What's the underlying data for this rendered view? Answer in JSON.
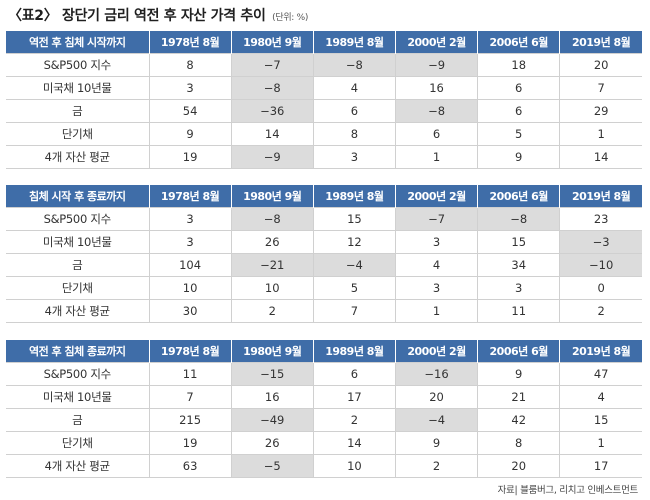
{
  "title": {
    "text": "〈표2〉 장단기 금리 역전 후 자산 가격 추이",
    "unit": "(단위: %)"
  },
  "columns": [
    "1978년 8월",
    "1980년 9월",
    "1989년 8월",
    "2000년 2월",
    "2006년 6월",
    "2019년 8월"
  ],
  "tables": [
    {
      "header": "역전 후 침체 시작까지",
      "rows": [
        {
          "label": "S&P500 지수",
          "values": [
            "8",
            "−7",
            "−8",
            "−9",
            "18",
            "20"
          ]
        },
        {
          "label": "미국채 10년물",
          "values": [
            "3",
            "−8",
            "4",
            "16",
            "6",
            "7"
          ]
        },
        {
          "label": "금",
          "values": [
            "54",
            "−36",
            "6",
            "−8",
            "6",
            "29"
          ]
        },
        {
          "label": "단기채",
          "values": [
            "9",
            "14",
            "8",
            "6",
            "5",
            "1"
          ]
        },
        {
          "label": "4개 자산 평균",
          "values": [
            "19",
            "−9",
            "3",
            "1",
            "9",
            "14"
          ]
        }
      ]
    },
    {
      "header": "침체 시작 후 종료까지",
      "rows": [
        {
          "label": "S&P500 지수",
          "values": [
            "3",
            "−8",
            "15",
            "−7",
            "−8",
            "23"
          ]
        },
        {
          "label": "미국채 10년물",
          "values": [
            "3",
            "26",
            "12",
            "3",
            "15",
            "−3"
          ]
        },
        {
          "label": "금",
          "values": [
            "104",
            "−21",
            "−4",
            "4",
            "34",
            "−10"
          ]
        },
        {
          "label": "단기채",
          "values": [
            "10",
            "10",
            "5",
            "3",
            "3",
            "0"
          ]
        },
        {
          "label": "4개 자산 평균",
          "values": [
            "30",
            "2",
            "7",
            "1",
            "11",
            "2"
          ]
        }
      ]
    },
    {
      "header": "역전 후 침체 종료까지",
      "rows": [
        {
          "label": "S&P500 지수",
          "values": [
            "11",
            "−15",
            "6",
            "−16",
            "9",
            "47"
          ]
        },
        {
          "label": "미국채 10년물",
          "values": [
            "7",
            "16",
            "17",
            "20",
            "21",
            "4"
          ]
        },
        {
          "label": "금",
          "values": [
            "215",
            "−49",
            "2",
            "−4",
            "42",
            "15"
          ]
        },
        {
          "label": "단기채",
          "values": [
            "19",
            "26",
            "14",
            "9",
            "8",
            "1"
          ]
        },
        {
          "label": "4개 자산 평균",
          "values": [
            "63",
            "−5",
            "10",
            "2",
            "20",
            "17"
          ]
        }
      ]
    }
  ],
  "source": "자료| 블룸버그, 리치고 인베스트먼트",
  "colors": {
    "header_bg": "#3f6da8",
    "negative_cell_bg": "#dcdcdc"
  }
}
